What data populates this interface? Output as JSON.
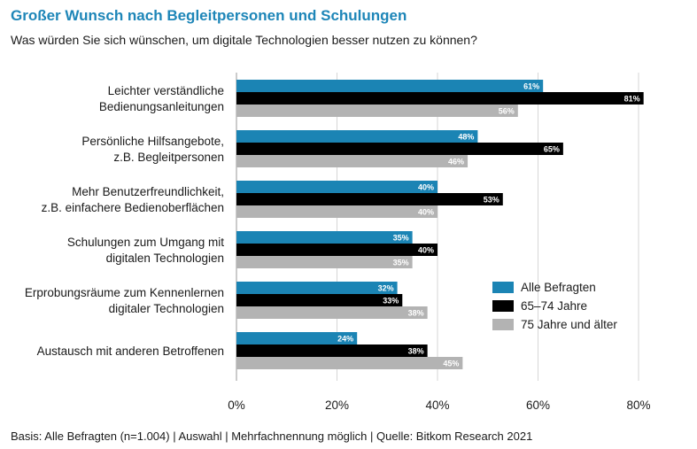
{
  "title": "Großer Wunsch nach Begleitpersonen und Schulungen",
  "subtitle": "Was würden Sie sich wünschen, um digitale Technologien besser nutzen zu können?",
  "footnote": "Basis: Alle Befragten (n=1.004) | Auswahl | Mehrfachnennung möglich | Quelle: Bitkom Research 2021",
  "chart_data": {
    "type": "bar",
    "orientation": "horizontal",
    "categories": [
      [
        "Leichter verständliche",
        "Bedienungsanleitungen"
      ],
      [
        "Persönliche Hilfsangebote,",
        "z.B. Begleitpersonen"
      ],
      [
        "Mehr Benutzerfreundlichkeit,",
        "z.B. einfachere Bedienoberflächen"
      ],
      [
        "Schulungen zum Umgang mit",
        "digitalen Technologien"
      ],
      [
        "Erprobungsräume zum Kennenlernen",
        "digitaler Technologien"
      ],
      [
        "Austausch mit anderen Betroffenen"
      ]
    ],
    "series": [
      {
        "name": "Alle Befragten",
        "color": "#1b84b4",
        "values": [
          61,
          48,
          40,
          35,
          32,
          24
        ]
      },
      {
        "name": "65–74 Jahre",
        "color": "#000000",
        "values": [
          81,
          65,
          53,
          40,
          33,
          38
        ]
      },
      {
        "name": "75 Jahre und älter",
        "color": "#b3b3b3",
        "values": [
          56,
          46,
          40,
          35,
          38,
          45
        ]
      }
    ],
    "value_suffix": "%",
    "xlim": [
      0,
      80
    ],
    "xticks": [
      0,
      20,
      40,
      60,
      80
    ],
    "xtick_labels": [
      "0%",
      "20%",
      "40%",
      "60%",
      "80%"
    ],
    "grid": true,
    "legend_position": "right"
  }
}
